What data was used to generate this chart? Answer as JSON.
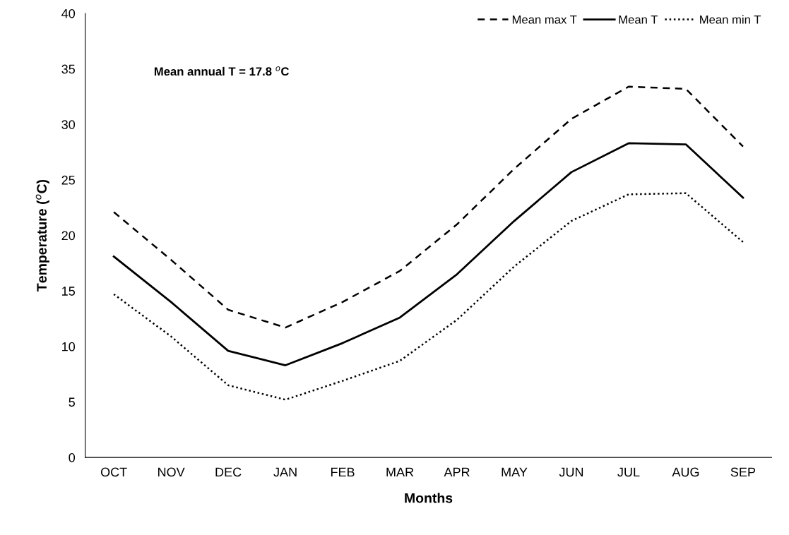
{
  "chart_data": {
    "type": "line",
    "xlabel": "Months",
    "ylabel": "Temperature ($^{o}$C)",
    "categories": [
      "OCT",
      "NOV",
      "DEC",
      "JAN",
      "FEB",
      "MAR",
      "APR",
      "MAY",
      "JUN",
      "JUL",
      "AUG",
      "SEP"
    ],
    "series": [
      {
        "name": "Mean max T",
        "color": "#000000",
        "line_style": "dashed",
        "values": [
          22.1,
          17.8,
          13.3,
          11.7,
          14.0,
          16.8,
          21.0,
          26.0,
          30.5,
          33.4,
          33.2,
          28.0
        ]
      },
      {
        "name": "Mean T",
        "color": "#000000",
        "line_style": "solid",
        "values": [
          18.1,
          14.0,
          9.6,
          8.3,
          10.3,
          12.6,
          16.5,
          21.3,
          25.7,
          28.3,
          28.2,
          23.4
        ]
      },
      {
        "name": "Mean min T",
        "color": "#000000",
        "line_style": "dotted",
        "values": [
          14.7,
          10.9,
          6.5,
          5.2,
          6.9,
          8.7,
          12.4,
          17.2,
          21.3,
          23.7,
          23.8,
          19.4
        ]
      }
    ],
    "ylim": [
      0,
      40
    ],
    "yticks": [
      0,
      5,
      10,
      15,
      20,
      25,
      30,
      35,
      40
    ],
    "annotations": [
      "Mean annual T = 17.8 $^{o}$C"
    ],
    "grid": false,
    "legend": "top right",
    "marker": "none"
  }
}
